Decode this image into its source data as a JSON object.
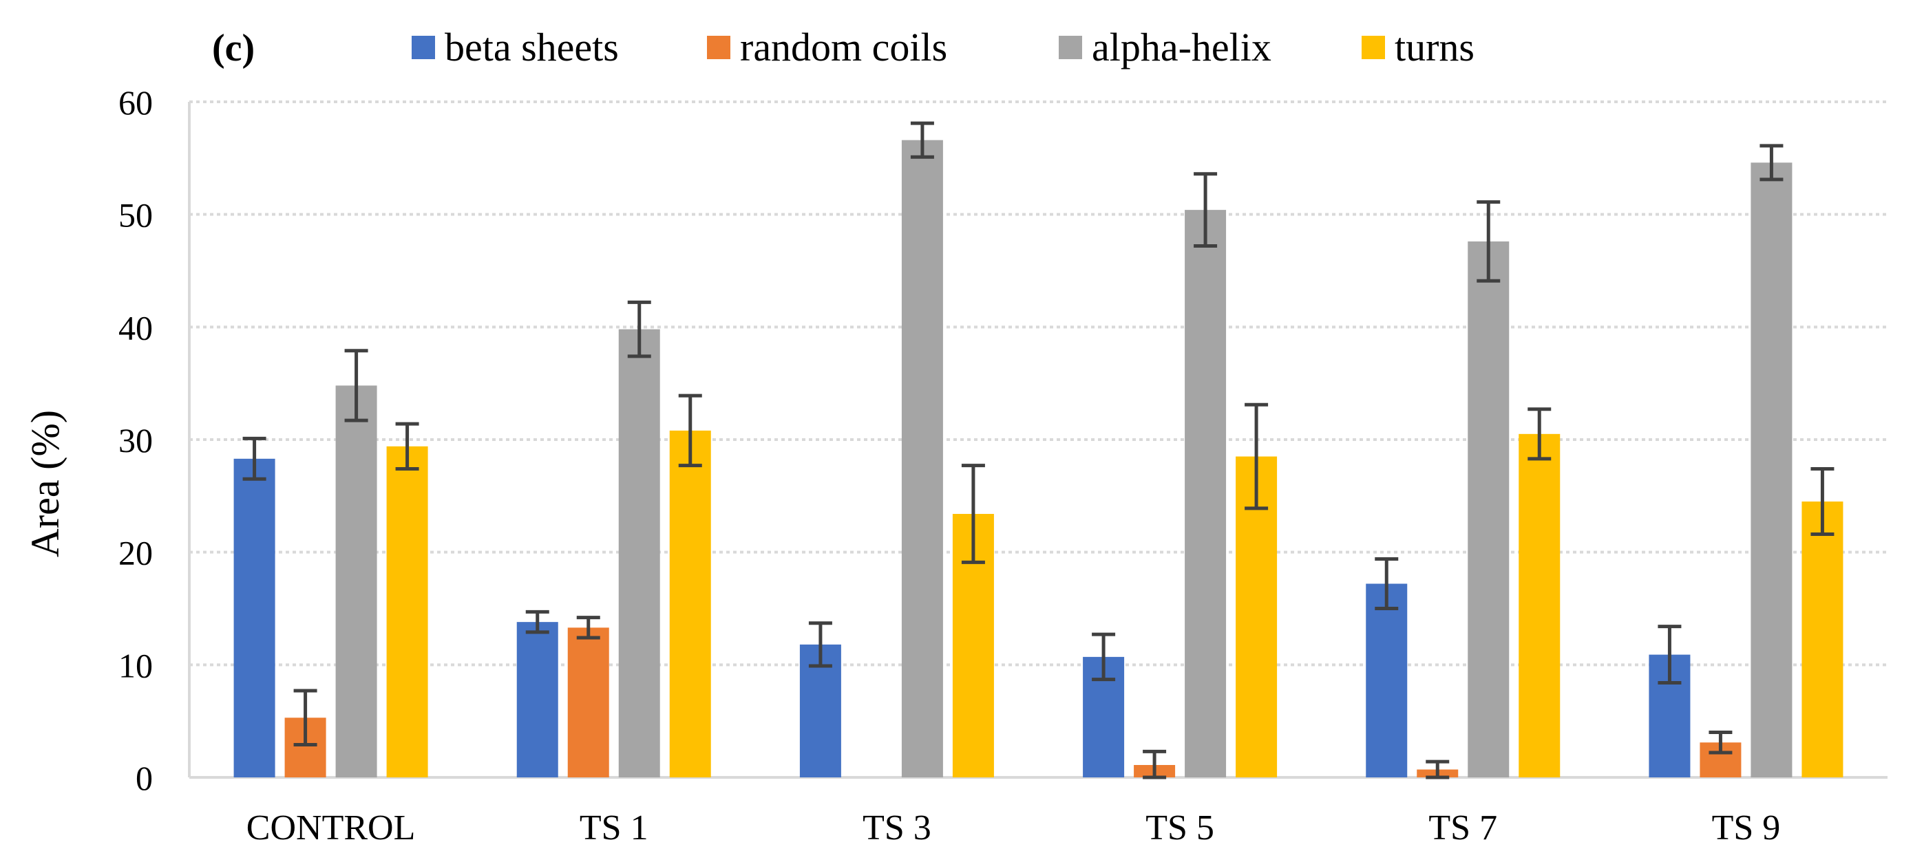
{
  "chart_data": {
    "type": "bar",
    "panel_label": "(c)",
    "title": "",
    "xlabel": "",
    "ylabel": "Area (%)",
    "ylim": [
      0,
      60
    ],
    "yticks": [
      0,
      10,
      20,
      30,
      40,
      50,
      60
    ],
    "grid": true,
    "legend_position": "top",
    "categories": [
      "CONTROL",
      "TS 1",
      "TS 3",
      "TS 5",
      "TS 7",
      "TS 9"
    ],
    "series": [
      {
        "name": "beta sheets",
        "color": "#4472C4",
        "values": [
          28.3,
          13.8,
          11.8,
          10.7,
          17.2,
          10.9
        ],
        "errors": [
          1.8,
          0.9,
          1.9,
          2.0,
          2.2,
          2.5
        ]
      },
      {
        "name": "random coils",
        "color": "#ED7D31",
        "values": [
          5.3,
          13.3,
          0.0,
          1.1,
          0.7,
          3.1
        ],
        "errors": [
          2.4,
          0.9,
          0.0,
          1.2,
          0.7,
          0.9
        ]
      },
      {
        "name": "alpha-helix",
        "color": "#A5A5A5",
        "values": [
          34.8,
          39.8,
          56.6,
          50.4,
          47.6,
          54.6
        ],
        "errors": [
          3.1,
          2.4,
          1.5,
          3.2,
          3.5,
          1.5
        ]
      },
      {
        "name": "turns",
        "color": "#FFC000",
        "values": [
          29.4,
          30.8,
          23.4,
          28.5,
          30.5,
          24.5
        ],
        "errors": [
          2.0,
          3.1,
          4.3,
          4.6,
          2.2,
          2.9
        ]
      }
    ]
  }
}
